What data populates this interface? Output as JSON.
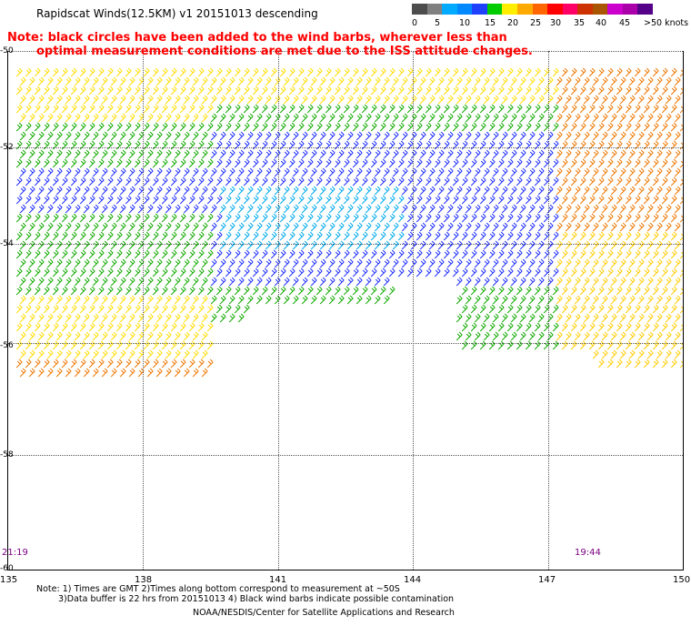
{
  "title": "Rapidscat Winds(12.5KM) v1 20151013 descending",
  "note": {
    "line1": "Note: black circles have been added to the wind barbs, wherever less than",
    "line2": "optimal measurement conditions are met due to the ISS attitude changes."
  },
  "legend": {
    "labels": [
      "0",
      "5",
      "10",
      "15",
      "20",
      "25",
      "30",
      "35",
      "40",
      "45",
      ">50 knots"
    ],
    "colors": [
      "#4d4d4d",
      "#808080",
      "#00aaff",
      "#0088ff",
      "#2040ff",
      "#00cc00",
      "#ffee00",
      "#ffaa00",
      "#ff6600",
      "#ff0000",
      "#ff0066",
      "#cc3300",
      "#aa5500",
      "#cc00cc",
      "#aa00aa",
      "#550088"
    ]
  },
  "axes": {
    "lat_labels": [
      "-50",
      "-52",
      "-54",
      "-56",
      "-58",
      "-60"
    ],
    "lon_labels": [
      "135",
      "138",
      "141",
      "144",
      "147",
      "150"
    ]
  },
  "times": {
    "left": "21:19",
    "right": "19:44"
  },
  "footer": {
    "line1": "Note: 1) Times are GMT 2)Times along bottom correspond to measurement at ~50S",
    "line2": "3)Data buffer is 22 hrs from 20151013 4) Black wind barbs indicate possible contamination",
    "line3": "NOAA/NESDIS/Center for Satellite Applications and Research"
  },
  "wind_regions": [
    {
      "name": "yellow-north",
      "color": "#ffdd00"
    },
    {
      "name": "orange-east",
      "color": "#ee7700"
    },
    {
      "name": "green-band",
      "color": "#11aa00"
    },
    {
      "name": "blue-core",
      "color": "#2030ff"
    },
    {
      "name": "cyan-core",
      "color": "#00aaee"
    },
    {
      "name": "yellow-southwest",
      "color": "#ffdd00"
    },
    {
      "name": "orange-southwest",
      "color": "#ee7700"
    },
    {
      "name": "yellow-southeast",
      "color": "#ffcc00"
    }
  ]
}
